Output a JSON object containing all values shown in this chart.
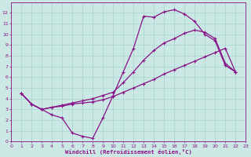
{
  "xlabel": "Windchill (Refroidissement éolien,°C)",
  "bg_color": "#cce8e4",
  "grid_color": "#aad8d4",
  "line_color": "#881188",
  "xlim": [
    0,
    23
  ],
  "ylim": [
    0,
    13
  ],
  "xticks": [
    0,
    1,
    2,
    3,
    4,
    5,
    6,
    7,
    8,
    9,
    10,
    11,
    12,
    13,
    14,
    15,
    16,
    17,
    18,
    19,
    20,
    21,
    22,
    23
  ],
  "yticks": [
    0,
    1,
    2,
    3,
    4,
    5,
    6,
    7,
    8,
    9,
    10,
    11,
    12
  ],
  "curve1_x": [
    1,
    2,
    3,
    4,
    5,
    6,
    7,
    8,
    9,
    10,
    11,
    12,
    13,
    14,
    15,
    16,
    17,
    18,
    19,
    20,
    21,
    22
  ],
  "curve1_y": [
    4.5,
    3.5,
    3.0,
    2.5,
    2.2,
    0.8,
    0.5,
    0.3,
    2.2,
    4.3,
    6.5,
    8.7,
    11.7,
    11.6,
    12.1,
    12.3,
    11.9,
    11.2,
    10.0,
    9.4,
    7.1,
    6.5
  ],
  "curve2_x": [
    1,
    2,
    3,
    4,
    5,
    6,
    7,
    8,
    9,
    10,
    11,
    12,
    13,
    14,
    15,
    16,
    17,
    18,
    19,
    20,
    21,
    22
  ],
  "curve2_y": [
    4.5,
    3.5,
    3.0,
    3.2,
    3.3,
    3.5,
    3.6,
    3.7,
    3.9,
    4.2,
    4.6,
    5.0,
    5.4,
    5.8,
    6.3,
    6.7,
    7.1,
    7.5,
    7.9,
    8.3,
    8.7,
    6.5
  ],
  "curve3_x": [
    1,
    2,
    3,
    4,
    5,
    6,
    7,
    8,
    9,
    10,
    11,
    12,
    13,
    14,
    15,
    16,
    17,
    18,
    19,
    20,
    21,
    22
  ],
  "curve3_y": [
    4.5,
    3.5,
    3.0,
    3.2,
    3.4,
    3.6,
    3.8,
    4.0,
    4.3,
    4.6,
    5.5,
    6.5,
    7.6,
    8.5,
    9.2,
    9.6,
    10.1,
    10.4,
    10.2,
    9.6,
    7.3,
    6.5
  ],
  "marker": "+",
  "markersize": 3.5,
  "linewidth": 0.9,
  "tick_fontsize": 4.5,
  "xlabel_fontsize": 5.2
}
